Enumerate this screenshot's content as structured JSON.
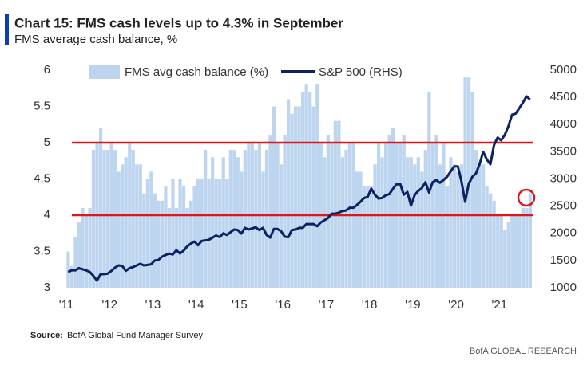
{
  "chart_data": {
    "type": "bar",
    "title": "Chart 15: FMS cash levels up to 4.3% in September",
    "subtitle": "FMS average cash balance, %",
    "source_label": "Source:",
    "source": "BofA Global Fund Manager Survey",
    "footer": "BofA GLOBAL RESEARCH",
    "legend": "top",
    "categories": [
      "'11",
      null,
      null,
      null,
      null,
      null,
      null,
      null,
      null,
      null,
      null,
      null,
      "'12",
      null,
      null,
      null,
      null,
      null,
      null,
      null,
      null,
      null,
      null,
      null,
      "'13",
      null,
      null,
      null,
      null,
      null,
      null,
      null,
      null,
      null,
      null,
      null,
      "'14",
      null,
      null,
      null,
      null,
      null,
      null,
      null,
      null,
      null,
      null,
      null,
      "'15",
      null,
      null,
      null,
      null,
      null,
      null,
      null,
      null,
      null,
      null,
      null,
      "'16",
      null,
      null,
      null,
      null,
      null,
      null,
      null,
      null,
      null,
      null,
      null,
      "'17",
      null,
      null,
      null,
      null,
      null,
      null,
      null,
      null,
      null,
      null,
      null,
      "'18",
      null,
      null,
      null,
      null,
      null,
      null,
      null,
      null,
      null,
      null,
      null,
      "'19",
      null,
      null,
      null,
      null,
      null,
      null,
      null,
      null,
      null,
      null,
      null,
      "'20",
      null,
      null,
      null,
      null,
      null,
      null,
      null,
      null,
      null,
      null,
      null,
      "'21",
      null,
      null,
      null,
      null,
      null,
      null,
      null,
      null
    ],
    "series": [
      {
        "name": "FMS avg cash balance (%)",
        "type": "bar",
        "color": "#bdd5ee",
        "values": [
          3.5,
          3.3,
          3.7,
          3.9,
          4.1,
          4.0,
          4.1,
          4.9,
          5.0,
          5.2,
          4.9,
          4.9,
          5.0,
          4.9,
          4.6,
          4.7,
          4.8,
          5.0,
          4.9,
          4.7,
          4.7,
          4.3,
          4.5,
          4.6,
          4.3,
          4.2,
          4.2,
          4.4,
          4.1,
          4.5,
          4.1,
          4.5,
          4.4,
          4.1,
          4.2,
          4.4,
          4.5,
          4.5,
          4.9,
          4.5,
          4.8,
          4.5,
          4.5,
          4.8,
          4.5,
          4.9,
          4.9,
          4.8,
          4.6,
          4.9,
          5.0,
          5.0,
          4.9,
          5.0,
          4.6,
          4.9,
          5.1,
          5.5,
          5.0,
          4.7,
          5.1,
          5.6,
          5.4,
          5.5,
          5.5,
          5.7,
          5.8,
          5.7,
          5.5,
          5.8,
          5.0,
          4.8,
          5.1,
          5.0,
          5.3,
          5.3,
          4.8,
          4.9,
          5.0,
          5.0,
          4.6,
          4.6,
          4.4,
          4.4,
          4.4,
          4.7,
          5.0,
          4.8,
          5.0,
          5.1,
          5.2,
          5.0,
          5.0,
          5.1,
          4.8,
          4.8,
          4.7,
          4.8,
          4.6,
          4.9,
          5.7,
          5.0,
          5.1,
          4.7,
          5.0,
          4.4,
          4.8,
          4.7,
          4.6,
          4.7,
          5.9,
          5.9,
          5.7,
          4.9,
          4.7,
          4.7,
          4.4,
          4.3,
          4.2,
          4.0,
          4.0,
          3.8,
          3.9,
          4.0,
          4.0,
          4.0,
          4.1,
          4.1,
          4.3
        ]
      },
      {
        "name": "S&P 500 (RHS)",
        "type": "line",
        "axis": "y2",
        "color": "#0d2260",
        "values": [
          1290,
          1320,
          1320,
          1360,
          1340,
          1320,
          1290,
          1220,
          1130,
          1250,
          1250,
          1260,
          1310,
          1370,
          1410,
          1400,
          1310,
          1360,
          1380,
          1410,
          1440,
          1410,
          1420,
          1430,
          1500,
          1510,
          1570,
          1600,
          1630,
          1610,
          1690,
          1630,
          1680,
          1760,
          1810,
          1850,
          1780,
          1860,
          1870,
          1880,
          1920,
          1960,
          1930,
          2000,
          1970,
          2020,
          2070,
          2060,
          1995,
          2100,
          2070,
          2090,
          2110,
          2060,
          2100,
          1970,
          1920,
          2080,
          2080,
          2040,
          1940,
          1930,
          2060,
          2070,
          2100,
          2100,
          2170,
          2170,
          2170,
          2130,
          2200,
          2240,
          2280,
          2360,
          2360,
          2380,
          2410,
          2420,
          2470,
          2470,
          2520,
          2580,
          2650,
          2670,
          2820,
          2710,
          2640,
          2650,
          2700,
          2720,
          2820,
          2900,
          2910,
          2710,
          2760,
          2510,
          2700,
          2780,
          2830,
          2940,
          2750,
          2940,
          2980,
          2930,
          2980,
          3040,
          3140,
          3230,
          3230,
          2950,
          2580,
          2910,
          3040,
          3100,
          3270,
          3500,
          3360,
          3270,
          3620,
          3760,
          3710,
          3810,
          3970,
          4180,
          4200,
          4300,
          4400,
          4520,
          4460
        ]
      }
    ],
    "ylim": [
      3,
      6
    ],
    "yticks": [
      3,
      3.5,
      4,
      4.5,
      5,
      5.5,
      6
    ],
    "y2lim": [
      1000,
      5000
    ],
    "y2ticks": [
      1000,
      1500,
      2000,
      2500,
      3000,
      3500,
      4000,
      4500,
      5000
    ],
    "reference_lines": [
      {
        "value": 5,
        "color": "#e0141b"
      },
      {
        "value": 4,
        "color": "#e0141b"
      }
    ]
  }
}
